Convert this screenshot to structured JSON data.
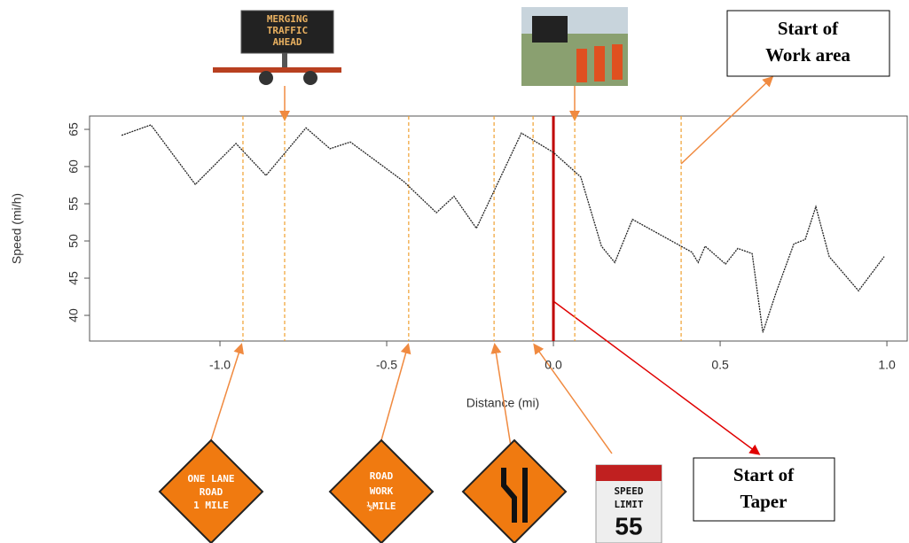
{
  "chart_data": {
    "type": "line",
    "x_label": "Distance (mi)",
    "y_label": "Speed (mi/h)",
    "x": [
      -1.295,
      -1.207,
      -1.074,
      -0.952,
      -0.862,
      -0.742,
      -0.67,
      -0.609,
      -0.449,
      -0.351,
      -0.298,
      -0.231,
      -0.096,
      0,
      0.082,
      0.144,
      0.184,
      0.237,
      0.415,
      0.434,
      0.455,
      0.516,
      0.553,
      0.596,
      0.628,
      0.668,
      0.721,
      0.755,
      0.787,
      0.827,
      0.915,
      0.992
    ],
    "values": [
      64.2,
      65.6,
      57.6,
      63.1,
      58.8,
      65.2,
      62.4,
      63.3,
      58.0,
      53.8,
      56.0,
      51.7,
      64.5,
      61.9,
      58.6,
      49.3,
      47.1,
      52.9,
      48.5,
      47.1,
      49.3,
      46.9,
      49.0,
      48.3,
      37.7,
      43.1,
      49.6,
      50.2,
      54.6,
      47.9,
      43.3,
      47.9
    ],
    "color": "#222222",
    "xlim": [
      -1.391,
      1.061
    ],
    "ylim": [
      36.55,
      66.79
    ],
    "xticks": [
      {
        "value": -1,
        "label": "-1.0"
      },
      -0.5,
      {
        "value": 0,
        "label": "0.0"
      },
      0.5,
      {
        "value": 1,
        "label": "1.0"
      }
    ],
    "yticks": [
      40,
      45,
      50,
      55,
      60,
      65
    ],
    "event_lines": [
      -0.931,
      -0.806,
      -0.434,
      -0.178,
      -0.061,
      0.064,
      0.383
    ],
    "event_color": "#f0a030",
    "taper_x": 0,
    "taper_color": "#c00000",
    "annotations": {
      "work_area": [
        "Start of",
        "Work area"
      ],
      "taper": [
        "Start of",
        "Taper"
      ]
    },
    "signs": {
      "vms": [
        "MERGING",
        "TRAFFIC",
        "AHEAD"
      ],
      "one_lane": [
        "ONE LANE",
        "ROAD",
        "1 MILE"
      ],
      "road_work": [
        "ROAD",
        "WORK",
        "½MILE"
      ],
      "speed": [
        "SPEED",
        "LIMIT",
        "55"
      ]
    }
  }
}
